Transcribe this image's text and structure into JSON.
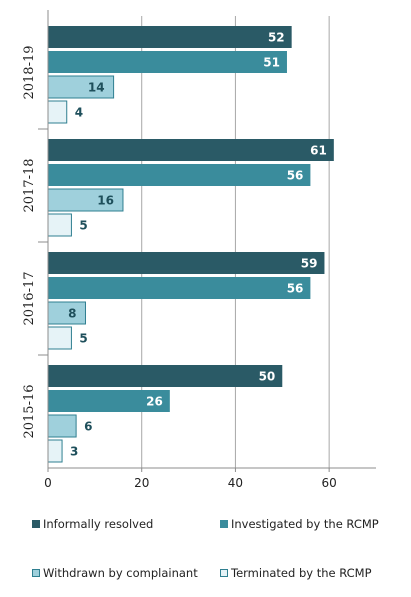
{
  "chart_data": {
    "type": "bar",
    "orientation": "horizontal",
    "categories": [
      "2018-19",
      "2017-18",
      "2016-17",
      "2015-16"
    ],
    "series": [
      {
        "name": "Informally resolved",
        "color": "#2a5a66",
        "values": [
          52,
          61,
          59,
          50
        ]
      },
      {
        "name": "Investigated by the RCMP",
        "color": "#3a8c9c",
        "values": [
          51,
          56,
          56,
          26
        ]
      },
      {
        "name": "Withdrawn by complainant",
        "color": "#9fd0dc",
        "values": [
          14,
          16,
          8,
          6
        ]
      },
      {
        "name": "Terminated by the RCMP",
        "color": "#e6f3f7",
        "values": [
          4,
          5,
          5,
          3
        ]
      }
    ],
    "xlim": [
      0,
      70
    ],
    "xticks": [
      0,
      20,
      40,
      60
    ],
    "grid": true,
    "legend_position": "bottom",
    "title": "",
    "xlabel": "",
    "ylabel": ""
  }
}
